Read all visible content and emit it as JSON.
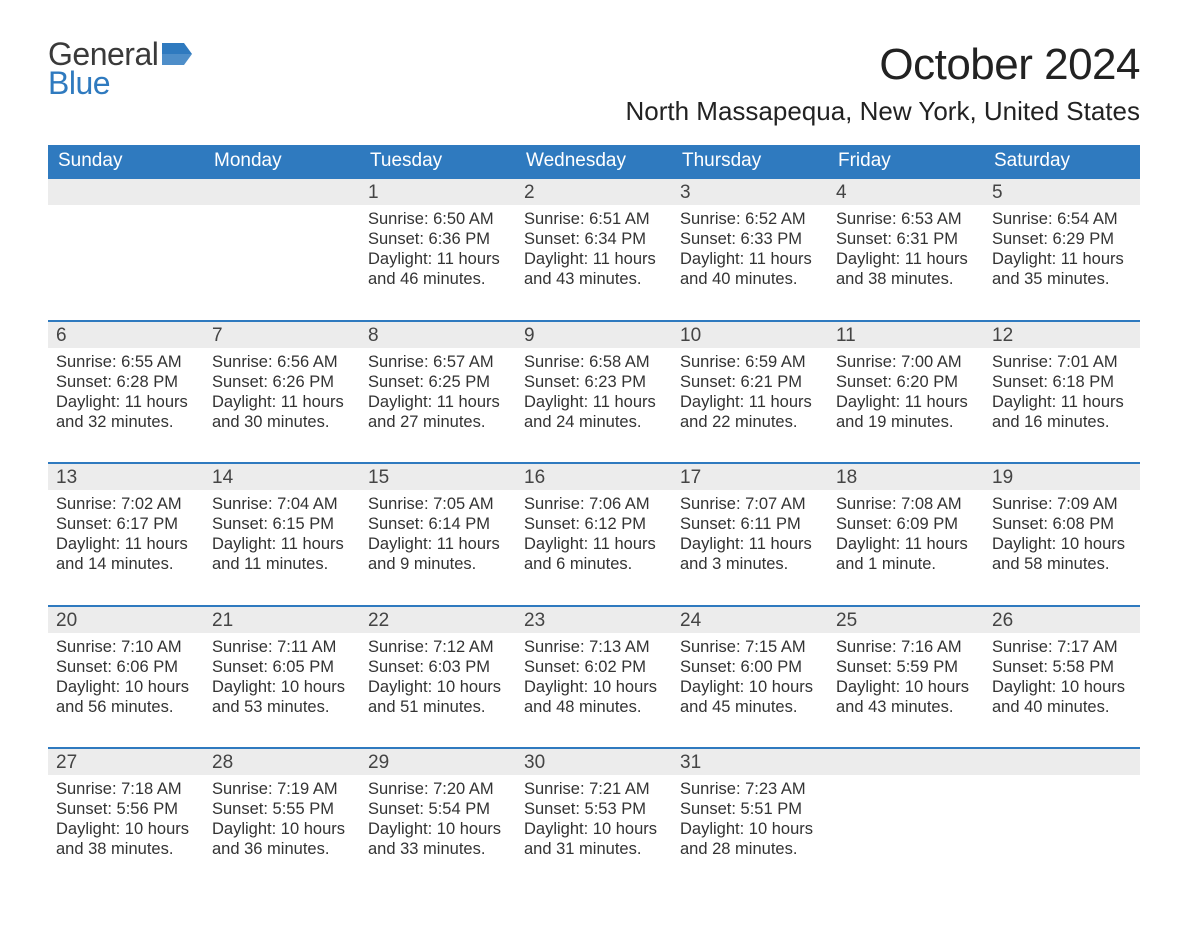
{
  "logo": {
    "line1": "General",
    "line2": "Blue"
  },
  "title": {
    "month": "October 2024",
    "location": "North Massapequa, New York, United States"
  },
  "weekday_headers": [
    "Sunday",
    "Monday",
    "Tuesday",
    "Wednesday",
    "Thursday",
    "Friday",
    "Saturday"
  ],
  "colors": {
    "header_bg": "#2f7abf",
    "daynum_bg": "#ececec",
    "separator": "#2f7abf",
    "text": "#222"
  },
  "weeks": [
    [
      {
        "empty": true
      },
      {
        "empty": true
      },
      {
        "day": "1",
        "sunrise": "Sunrise: 6:50 AM",
        "sunset": "Sunset: 6:36 PM",
        "daylight": "Daylight: 11 hours and 46 minutes."
      },
      {
        "day": "2",
        "sunrise": "Sunrise: 6:51 AM",
        "sunset": "Sunset: 6:34 PM",
        "daylight": "Daylight: 11 hours and 43 minutes."
      },
      {
        "day": "3",
        "sunrise": "Sunrise: 6:52 AM",
        "sunset": "Sunset: 6:33 PM",
        "daylight": "Daylight: 11 hours and 40 minutes."
      },
      {
        "day": "4",
        "sunrise": "Sunrise: 6:53 AM",
        "sunset": "Sunset: 6:31 PM",
        "daylight": "Daylight: 11 hours and 38 minutes."
      },
      {
        "day": "5",
        "sunrise": "Sunrise: 6:54 AM",
        "sunset": "Sunset: 6:29 PM",
        "daylight": "Daylight: 11 hours and 35 minutes."
      }
    ],
    [
      {
        "day": "6",
        "sunrise": "Sunrise: 6:55 AM",
        "sunset": "Sunset: 6:28 PM",
        "daylight": "Daylight: 11 hours and 32 minutes."
      },
      {
        "day": "7",
        "sunrise": "Sunrise: 6:56 AM",
        "sunset": "Sunset: 6:26 PM",
        "daylight": "Daylight: 11 hours and 30 minutes."
      },
      {
        "day": "8",
        "sunrise": "Sunrise: 6:57 AM",
        "sunset": "Sunset: 6:25 PM",
        "daylight": "Daylight: 11 hours and 27 minutes."
      },
      {
        "day": "9",
        "sunrise": "Sunrise: 6:58 AM",
        "sunset": "Sunset: 6:23 PM",
        "daylight": "Daylight: 11 hours and 24 minutes."
      },
      {
        "day": "10",
        "sunrise": "Sunrise: 6:59 AM",
        "sunset": "Sunset: 6:21 PM",
        "daylight": "Daylight: 11 hours and 22 minutes."
      },
      {
        "day": "11",
        "sunrise": "Sunrise: 7:00 AM",
        "sunset": "Sunset: 6:20 PM",
        "daylight": "Daylight: 11 hours and 19 minutes."
      },
      {
        "day": "12",
        "sunrise": "Sunrise: 7:01 AM",
        "sunset": "Sunset: 6:18 PM",
        "daylight": "Daylight: 11 hours and 16 minutes."
      }
    ],
    [
      {
        "day": "13",
        "sunrise": "Sunrise: 7:02 AM",
        "sunset": "Sunset: 6:17 PM",
        "daylight": "Daylight: 11 hours and 14 minutes."
      },
      {
        "day": "14",
        "sunrise": "Sunrise: 7:04 AM",
        "sunset": "Sunset: 6:15 PM",
        "daylight": "Daylight: 11 hours and 11 minutes."
      },
      {
        "day": "15",
        "sunrise": "Sunrise: 7:05 AM",
        "sunset": "Sunset: 6:14 PM",
        "daylight": "Daylight: 11 hours and 9 minutes."
      },
      {
        "day": "16",
        "sunrise": "Sunrise: 7:06 AM",
        "sunset": "Sunset: 6:12 PM",
        "daylight": "Daylight: 11 hours and 6 minutes."
      },
      {
        "day": "17",
        "sunrise": "Sunrise: 7:07 AM",
        "sunset": "Sunset: 6:11 PM",
        "daylight": "Daylight: 11 hours and 3 minutes."
      },
      {
        "day": "18",
        "sunrise": "Sunrise: 7:08 AM",
        "sunset": "Sunset: 6:09 PM",
        "daylight": "Daylight: 11 hours and 1 minute."
      },
      {
        "day": "19",
        "sunrise": "Sunrise: 7:09 AM",
        "sunset": "Sunset: 6:08 PM",
        "daylight": "Daylight: 10 hours and 58 minutes."
      }
    ],
    [
      {
        "day": "20",
        "sunrise": "Sunrise: 7:10 AM",
        "sunset": "Sunset: 6:06 PM",
        "daylight": "Daylight: 10 hours and 56 minutes."
      },
      {
        "day": "21",
        "sunrise": "Sunrise: 7:11 AM",
        "sunset": "Sunset: 6:05 PM",
        "daylight": "Daylight: 10 hours and 53 minutes."
      },
      {
        "day": "22",
        "sunrise": "Sunrise: 7:12 AM",
        "sunset": "Sunset: 6:03 PM",
        "daylight": "Daylight: 10 hours and 51 minutes."
      },
      {
        "day": "23",
        "sunrise": "Sunrise: 7:13 AM",
        "sunset": "Sunset: 6:02 PM",
        "daylight": "Daylight: 10 hours and 48 minutes."
      },
      {
        "day": "24",
        "sunrise": "Sunrise: 7:15 AM",
        "sunset": "Sunset: 6:00 PM",
        "daylight": "Daylight: 10 hours and 45 minutes."
      },
      {
        "day": "25",
        "sunrise": "Sunrise: 7:16 AM",
        "sunset": "Sunset: 5:59 PM",
        "daylight": "Daylight: 10 hours and 43 minutes."
      },
      {
        "day": "26",
        "sunrise": "Sunrise: 7:17 AM",
        "sunset": "Sunset: 5:58 PM",
        "daylight": "Daylight: 10 hours and 40 minutes."
      }
    ],
    [
      {
        "day": "27",
        "sunrise": "Sunrise: 7:18 AM",
        "sunset": "Sunset: 5:56 PM",
        "daylight": "Daylight: 10 hours and 38 minutes."
      },
      {
        "day": "28",
        "sunrise": "Sunrise: 7:19 AM",
        "sunset": "Sunset: 5:55 PM",
        "daylight": "Daylight: 10 hours and 36 minutes."
      },
      {
        "day": "29",
        "sunrise": "Sunrise: 7:20 AM",
        "sunset": "Sunset: 5:54 PM",
        "daylight": "Daylight: 10 hours and 33 minutes."
      },
      {
        "day": "30",
        "sunrise": "Sunrise: 7:21 AM",
        "sunset": "Sunset: 5:53 PM",
        "daylight": "Daylight: 10 hours and 31 minutes."
      },
      {
        "day": "31",
        "sunrise": "Sunrise: 7:23 AM",
        "sunset": "Sunset: 5:51 PM",
        "daylight": "Daylight: 10 hours and 28 minutes."
      },
      {
        "empty": true
      },
      {
        "empty": true
      }
    ]
  ]
}
